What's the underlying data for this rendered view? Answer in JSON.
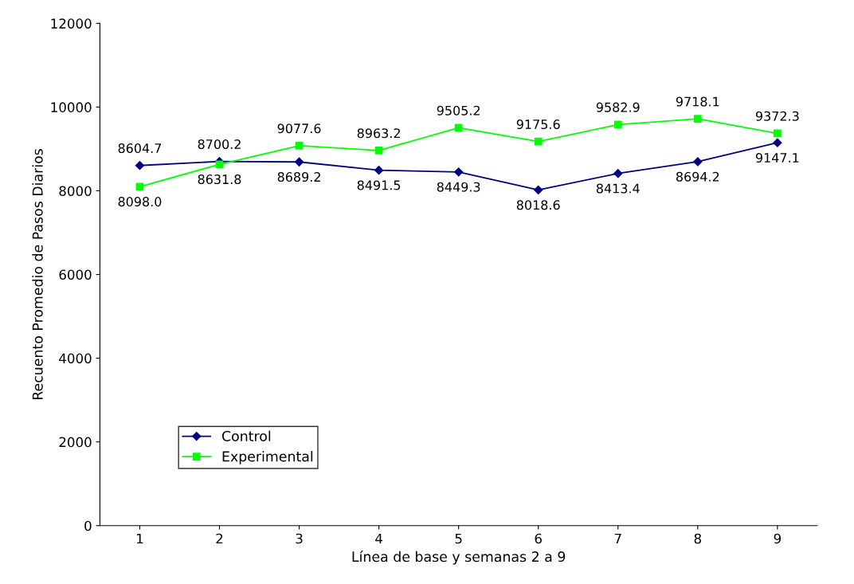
{
  "chart_data": {
    "type": "line",
    "xlabel": "Línea de base y semanas 2 a 9",
    "ylabel": "Recuento Promedio de Pasos Diarios",
    "categories": [
      "1",
      "2",
      "3",
      "4",
      "5",
      "6",
      "7",
      "8",
      "9"
    ],
    "ylim": [
      0,
      12000
    ],
    "yticks": [
      0,
      2000,
      4000,
      6000,
      8000,
      10000,
      12000
    ],
    "grid": false,
    "legend": "bottom left",
    "series": [
      {
        "name": "Control",
        "color": "#000080",
        "marker": "diamond",
        "values": [
          8604.7,
          8700.2,
          8689.2,
          8491.5,
          8449.3,
          8018.6,
          8413.4,
          8694.2,
          9147.1
        ],
        "value_labels": [
          "8604.7",
          "8700.2",
          "8689.2",
          "8491.5",
          "8449.3",
          "8018.6",
          "8413.4",
          "8694.2",
          "9147.1"
        ]
      },
      {
        "name": "Experimental",
        "color": "#00ff00",
        "marker": "square",
        "values": [
          8098.0,
          8631.8,
          9077.6,
          8963.2,
          9505.2,
          9175.6,
          9582.9,
          9718.1,
          9372.3
        ],
        "value_labels": [
          "8098.0",
          "8631.8",
          "9077.6",
          "8963.2",
          "9505.2",
          "9175.6",
          "9582.9",
          "9718.1",
          "9372.3"
        ]
      }
    ]
  }
}
